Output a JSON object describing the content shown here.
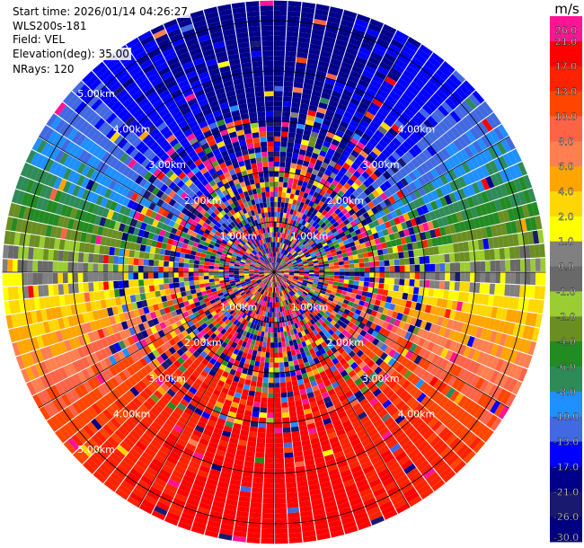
{
  "header": {
    "start_time": "Start time: 2026/01/14 04:26:27",
    "station": "WLS200s-181",
    "field": "Field: VEL",
    "elevation": "Elevation(deg): 35.00",
    "nrays": "NRays: 120"
  },
  "colorbar": {
    "unit": "m/s",
    "labels": [
      "26.0",
      "21.0",
      "17.0",
      "13.0",
      "10.0",
      "8.0",
      "6.0",
      "4.0",
      "2.0",
      "1.0",
      "0.0",
      "-1.0",
      "-2.0",
      "-4.0",
      "-6.0",
      "-8.0",
      "-10.0",
      "-13.0",
      "-17.0",
      "-21.0",
      "-26.0",
      "-30.0"
    ],
    "colors": [
      "#ff1493",
      "#ff0000",
      "#ff2200",
      "#ff4500",
      "#ff6347",
      "#ff7f50",
      "#ffa500",
      "#ffd700",
      "#ffff00",
      "#808080",
      "#696969",
      "#9acd32",
      "#6b8e23",
      "#228b22",
      "#2e8b57",
      "#1e90ff",
      "#4169e1",
      "#0000ff",
      "#00008b",
      "#191970",
      "#000080"
    ]
  },
  "chart_data": {
    "type": "heatmap",
    "projection": "polar",
    "field": "VEL",
    "unit": "m/s",
    "nrays": 120,
    "elevation_deg": 35.0,
    "range_rings_km": [
      1,
      2,
      3,
      4,
      5
    ],
    "max_range_km": 5.4,
    "range_labels": [
      "1.00km",
      "2.00km",
      "3.00km",
      "4.00km",
      "5.00km"
    ],
    "gates_per_ray": 54,
    "dominant_pattern": {
      "toward_top": -17.0,
      "toward_bottom": 21.0,
      "dominant_value_description": "radial wind field: negative velocities (blue) toward north, positive (red) toward south, near zero along east-west axis"
    }
  }
}
